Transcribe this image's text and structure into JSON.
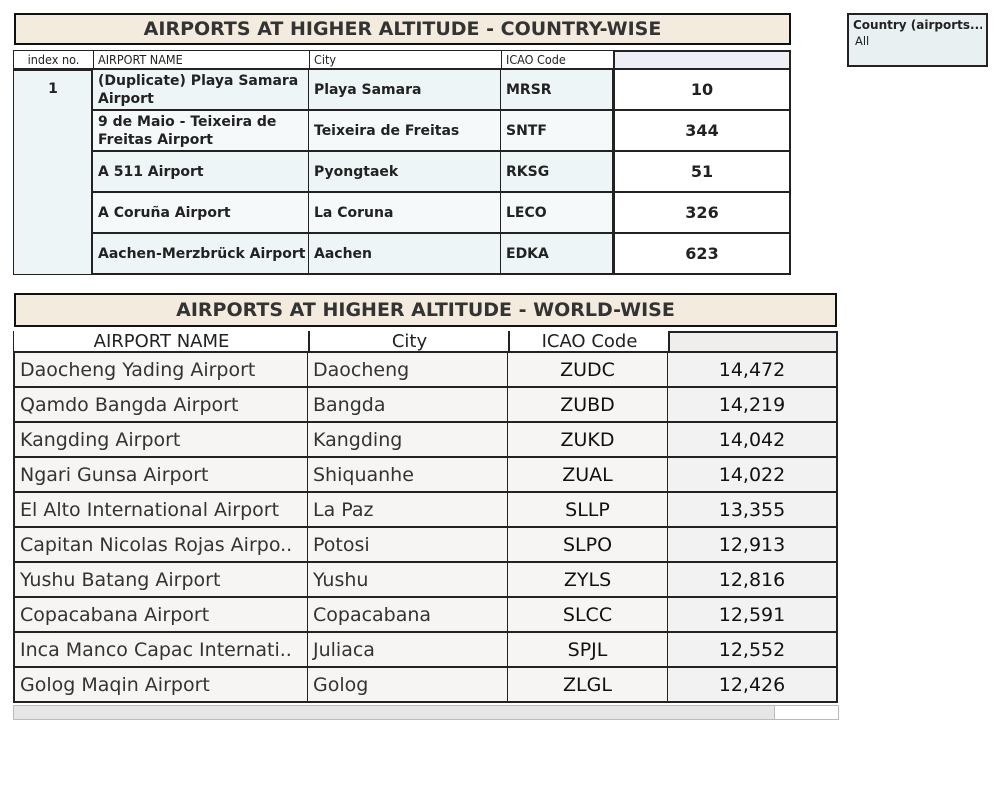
{
  "country_table": {
    "title": "AIRPORTS AT HIGHER ALTITUDE - COUNTRY-WISE",
    "headers": [
      "index no.",
      "AIRPORT NAME",
      "City",
      "ICAO Code",
      ""
    ],
    "index_value": "1",
    "rows": [
      {
        "airport": "(Duplicate) Playa Samara Airport",
        "city": "Playa Samara",
        "icao": "MRSR",
        "value": "10"
      },
      {
        "airport": "9 de Maio - Teixeira de Freitas Airport",
        "city": "Teixeira de Freitas",
        "icao": "SNTF",
        "value": "344"
      },
      {
        "airport": "A 511 Airport",
        "city": "Pyongtaek",
        "icao": "RKSG",
        "value": "51"
      },
      {
        "airport": "A Coruña Airport",
        "city": "La Coruna",
        "icao": "LECO",
        "value": "326"
      },
      {
        "airport": "Aachen-Merzbrück Airport",
        "city": "Aachen",
        "icao": "EDKA",
        "value": "623"
      }
    ]
  },
  "world_table": {
    "title": "AIRPORTS AT HIGHER ALTITUDE - WORLD-WISE",
    "headers": [
      "AIRPORT NAME",
      "City",
      "ICAO Code",
      ""
    ],
    "rows": [
      {
        "airport": "Daocheng Yading Airport",
        "city": "Daocheng",
        "icao": "ZUDC",
        "value": "14,472"
      },
      {
        "airport": "Qamdo Bangda Airport",
        "city": "Bangda",
        "icao": "ZUBD",
        "value": "14,219"
      },
      {
        "airport": "Kangding Airport",
        "city": "Kangding",
        "icao": "ZUKD",
        "value": "14,042"
      },
      {
        "airport": "Ngari Gunsa Airport",
        "city": "Shiquanhe",
        "icao": "ZUAL",
        "value": "14,022"
      },
      {
        "airport": "El Alto International Airport",
        "city": "La Paz",
        "icao": "SLLP",
        "value": "13,355"
      },
      {
        "airport": "Capitan Nicolas Rojas Airpo..",
        "city": "Potosi",
        "icao": "SLPO",
        "value": "12,913"
      },
      {
        "airport": "Yushu Batang Airport",
        "city": "Yushu",
        "icao": "ZYLS",
        "value": "12,816"
      },
      {
        "airport": "Copacabana Airport",
        "city": "Copacabana",
        "icao": "SLCC",
        "value": "12,591"
      },
      {
        "airport": "Inca Manco Capac Internati..",
        "city": "Juliaca",
        "icao": "SPJL",
        "value": "12,552"
      },
      {
        "airport": "Golog Maqin Airport",
        "city": "Golog",
        "icao": "ZLGL",
        "value": "12,426"
      }
    ]
  },
  "filter": {
    "title": "Country (airports...",
    "value": "All"
  }
}
